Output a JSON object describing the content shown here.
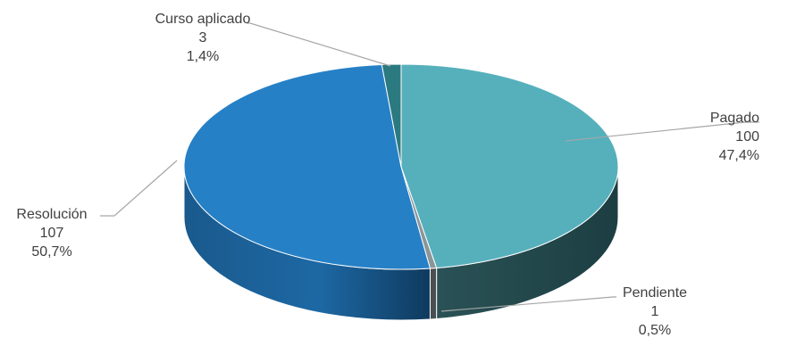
{
  "chart_data": {
    "type": "pie",
    "style": "3d",
    "title": "",
    "slices": [
      {
        "label": "Pagado",
        "value": 100,
        "percent": "47,4%",
        "color": "#56b0bc",
        "side_color": "#23494d"
      },
      {
        "label": "Pendiente",
        "value": 1,
        "percent": "0,5%",
        "color": "#8c9598",
        "side_color": "#4a4f51"
      },
      {
        "label": "Resolución",
        "value": 107,
        "percent": "50,7%",
        "color": "#2680c6",
        "side_color": "#1b5d92"
      },
      {
        "label": "Curso aplicado",
        "value": 3,
        "percent": "1,4%",
        "color": "#2b7a80",
        "side_color": "#1c4f53"
      }
    ],
    "labels_show": [
      "name",
      "value",
      "percent"
    ],
    "legend": "none"
  }
}
